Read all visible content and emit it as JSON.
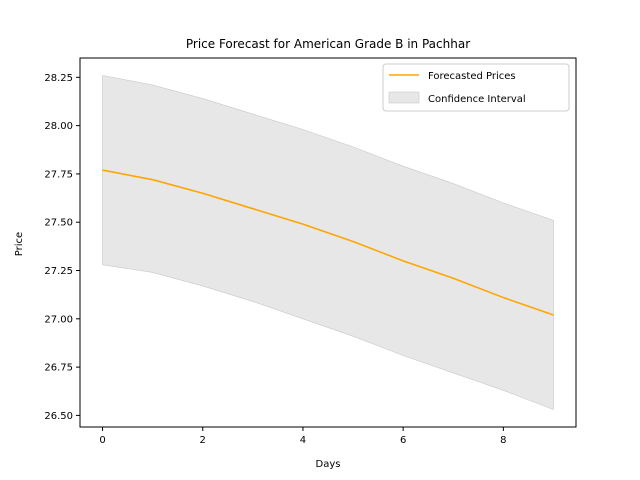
{
  "chart_data": {
    "type": "line",
    "title": "Price Forecast for American Grade B in Pachhar",
    "xlabel": "Days",
    "ylabel": "Price",
    "x": [
      0,
      1,
      2,
      3,
      4,
      5,
      6,
      7,
      8,
      9
    ],
    "series": [
      {
        "name": "Forecasted Prices",
        "values": [
          27.77,
          27.72,
          27.65,
          27.57,
          27.49,
          27.4,
          27.3,
          27.21,
          27.11,
          27.02
        ],
        "color": "#ffa500"
      }
    ],
    "confidence_interval": {
      "name": "Confidence Interval",
      "upper": [
        28.26,
        28.21,
        28.14,
        28.06,
        27.98,
        27.89,
        27.79,
        27.7,
        27.6,
        27.51
      ],
      "lower": [
        27.28,
        27.24,
        27.17,
        27.09,
        27.0,
        26.91,
        26.81,
        26.72,
        26.63,
        26.53
      ],
      "color": "#d3d3d3"
    },
    "xlim": [
      -0.45,
      9.45
    ],
    "ylim": [
      26.44,
      28.35
    ],
    "xticks": [
      0,
      2,
      4,
      6,
      8
    ],
    "xtick_labels": [
      "0",
      "2",
      "4",
      "6",
      "8"
    ],
    "yticks": [
      26.5,
      26.75,
      27.0,
      27.25,
      27.5,
      27.75,
      28.0,
      28.25
    ],
    "ytick_labels": [
      "26.50",
      "26.75",
      "27.00",
      "27.25",
      "27.50",
      "27.75",
      "28.00",
      "28.25"
    ],
    "grid": false,
    "legend_position": "top-right"
  }
}
